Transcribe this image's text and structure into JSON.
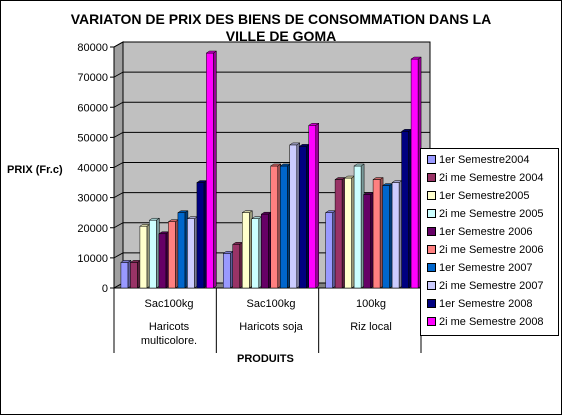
{
  "chart_data": {
    "type": "bar",
    "title_line1": "VARIATON DE PRIX DES BIENS DE CONSOMMATION DANS LA",
    "title_line2": "VILLE DE GOMA",
    "ylabel": "PRIX (Fr.c)",
    "xlabel": "PRODUITS",
    "ylim": [
      0,
      80000
    ],
    "yticks": [
      "0",
      "10000",
      "20000",
      "30000",
      "40000",
      "50000",
      "60000",
      "70000",
      "80000"
    ],
    "grid": "horizontal",
    "legend_position": "right",
    "categories": [
      {
        "line1": "Sac100kg",
        "line2": "Haricots",
        "line3": "multicolore."
      },
      {
        "line1": "Sac100kg",
        "line2": "Haricots soja",
        "line3": ""
      },
      {
        "line1": "100kg",
        "line2": "Riz local",
        "line3": ""
      }
    ],
    "series": [
      {
        "name": "1er Semestre2004",
        "color": "#9999ff",
        "values": [
          8500,
          11500,
          25000
        ]
      },
      {
        "name": "2i  me Semestre 2004",
        "color": "#993366",
        "values": [
          8500,
          14500,
          36000
        ]
      },
      {
        "name": "1er Semestre2005",
        "color": "#ffffcc",
        "values": [
          20500,
          25000,
          36500
        ]
      },
      {
        "name": "2i  me Semestre 2005",
        "color": "#ccffff",
        "values": [
          22500,
          23000,
          40500
        ]
      },
      {
        "name": "1er Semestre 2006",
        "color": "#660066",
        "values": [
          18000,
          24500,
          31000
        ]
      },
      {
        "name": "2i  me Semestre 2006",
        "color": "#ff8080",
        "values": [
          22000,
          40500,
          36000
        ]
      },
      {
        "name": "1er Semestre 2007",
        "color": "#0066cc",
        "values": [
          25000,
          40500,
          34000
        ]
      },
      {
        "name": "2i  me Semestre 2007",
        "color": "#ccccff",
        "values": [
          23000,
          47500,
          35000
        ]
      },
      {
        "name": "1er Semestre 2008",
        "color": "#000080",
        "values": [
          35000,
          47000,
          52000
        ]
      },
      {
        "name": "2i  me Semestre 2008",
        "color": "#ff00ff",
        "values": [
          78000,
          54000,
          76000
        ]
      }
    ],
    "colors": {
      "wall": "#c0c0c0",
      "floor": "#808080",
      "grid": "#000000"
    }
  }
}
